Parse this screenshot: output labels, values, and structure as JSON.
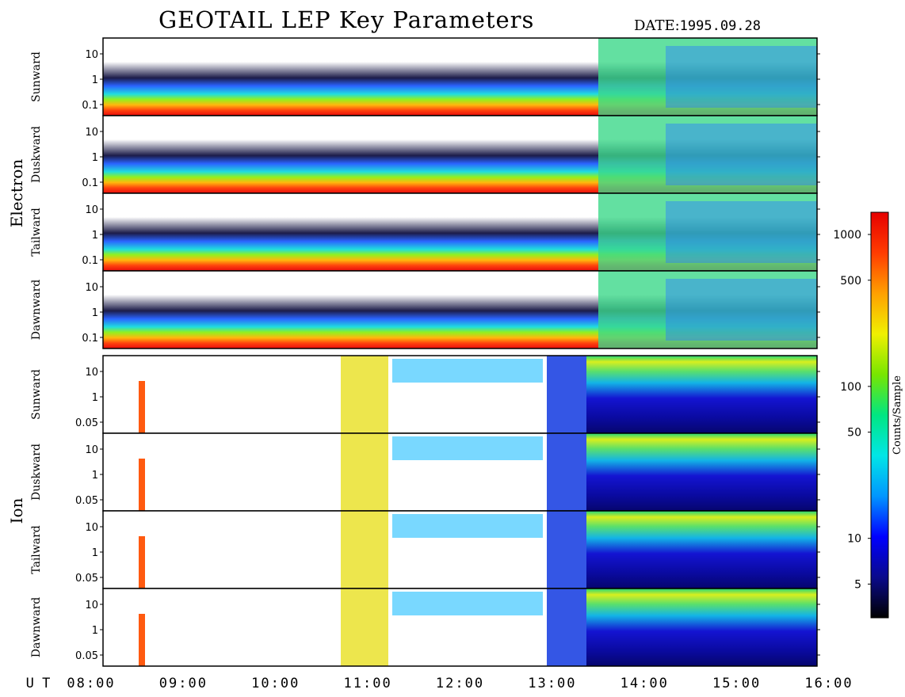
{
  "chart_data": {
    "type": "heatmap",
    "title": "GEOTAIL LEP Key Parameters",
    "date_label": "DATE:",
    "date_value": "1995.09.28",
    "x_label": "U T",
    "x_ticks": [
      "08:00",
      "09:00",
      "10:00",
      "11:00",
      "12:00",
      "13:00",
      "14:00",
      "15:00",
      "16:00"
    ],
    "x_range": [
      "08:00",
      "16:00"
    ],
    "groups": [
      {
        "name": "Electron",
        "y_ticks": [
          "10",
          "1",
          "0.1"
        ],
        "panels": [
          "Sunward",
          "Duskward",
          "Tailward",
          "Dawnward"
        ]
      },
      {
        "name": "Ion",
        "y_ticks": [
          "10",
          "1",
          "0.05"
        ],
        "panels": [
          "Sunward",
          "Duskward",
          "Tailward",
          "Dawnward"
        ]
      }
    ],
    "colorbar": {
      "label": "Counts/Sample",
      "scale": "log",
      "ticks": [
        "1000",
        "500",
        "100",
        "50",
        "10",
        "5"
      ],
      "tick_values": [
        1000,
        500,
        100,
        50,
        10,
        5
      ],
      "range": [
        3,
        1400
      ],
      "colors": [
        "#000000",
        "#0a0a8c",
        "#0000ff",
        "#0096ff",
        "#00e6e6",
        "#00e682",
        "#78e600",
        "#f0f000",
        "#ffa000",
        "#ff3c00",
        "#e60000"
      ]
    }
  }
}
